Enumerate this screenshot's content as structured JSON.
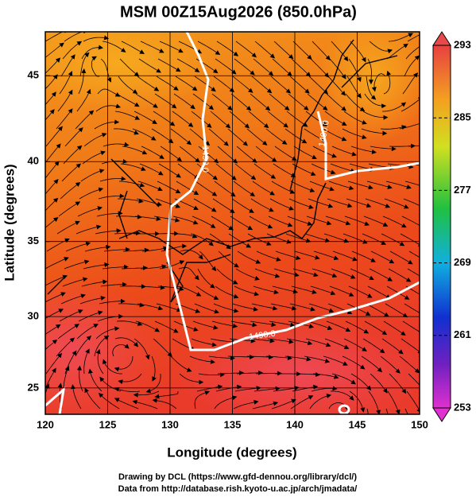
{
  "chart_data": {
    "type": "map",
    "title": "MSM 00Z15Aug2026 (850.0hPa)",
    "x_label": "Longitude (degrees)",
    "y_label": "Latitude  (degrees)",
    "projection": "mercator",
    "xlim": [
      120,
      150
    ],
    "xticks": [
      120,
      125,
      130,
      135,
      140,
      145,
      150
    ],
    "ylim": [
      23.1,
      47.4
    ],
    "yticks": [
      25,
      30,
      35,
      40,
      45
    ],
    "grid": true,
    "colorbar": {
      "clim": [
        253,
        293
      ],
      "ticks": [
        253,
        261,
        269,
        277,
        285,
        293
      ]
    },
    "contour_labels": [
      "1490.0",
      "1490.0",
      "1490.0"
    ],
    "footer": [
      "Drawing by DCL (https://www.gfd-dennou.org/library/dcl/)",
      "Data from http://database.rish.kyoto-u.ac.jp/arch/jmadata/"
    ]
  }
}
